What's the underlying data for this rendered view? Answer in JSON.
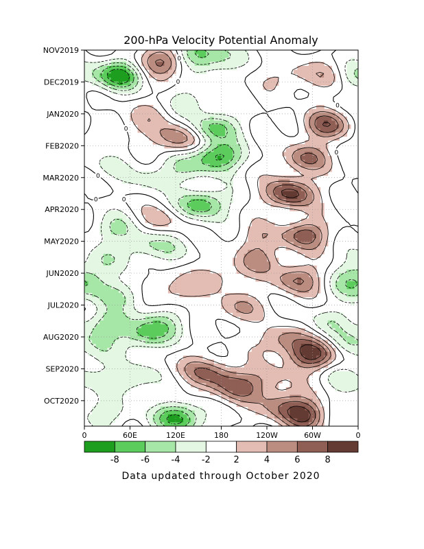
{
  "chart_data": {
    "type": "heatmap",
    "title": "200-hPa Velocity Potential Anomaly",
    "x_tick_labels": [
      "0",
      "60E",
      "120E",
      "180",
      "120W",
      "60W",
      "0"
    ],
    "x_ticks_deg": [
      0,
      60,
      120,
      180,
      240,
      300,
      360
    ],
    "xlim_deg": [
      0,
      360
    ],
    "y_tick_labels": [
      "NOV2019",
      "DEC2019",
      "JAN2020",
      "FEB2020",
      "MAR2020",
      "APR2020",
      "MAY2020",
      "JUN2020",
      "JUL2020",
      "AUG2020",
      "SEP2020",
      "OCT2020"
    ],
    "ylim_months": [
      0,
      11.8
    ],
    "grid": true,
    "colorbar": {
      "labels": [
        "-8",
        "-6",
        "-4",
        "-2",
        "2",
        "4",
        "6",
        "8"
      ],
      "colors": [
        "#1e9e1e",
        "#5ccc5c",
        "#a6e6a6",
        "#e3f7e3",
        "#ffffff",
        "#e3bcb3",
        "#bb8c80",
        "#8f5e54",
        "#633b33"
      ]
    },
    "contour_label": "0",
    "footer": "Data updated through October 2020",
    "anomaly_centers": [
      {
        "lon": 45,
        "t": 0.8,
        "value": -9
      },
      {
        "lon": 105,
        "t": 0.35,
        "value": 7
      },
      {
        "lon": 150,
        "t": 0.1,
        "value": -7
      },
      {
        "lon": 180,
        "t": 0.35,
        "value": -3
      },
      {
        "lon": 270,
        "t": 0.8,
        "value": 3
      },
      {
        "lon": 320,
        "t": 0.8,
        "value": 3
      },
      {
        "lon": 350,
        "t": 0.8,
        "value": -3
      },
      {
        "lon": 140,
        "t": 1.6,
        "value": -3
      },
      {
        "lon": 80,
        "t": 2.0,
        "value": 2
      },
      {
        "lon": 170,
        "t": 2.45,
        "value": -7
      },
      {
        "lon": 320,
        "t": 2.35,
        "value": 7
      },
      {
        "lon": 20,
        "t": 2.6,
        "value": -3
      },
      {
        "lon": 60,
        "t": 2.5,
        "value": 2
      },
      {
        "lon": 125,
        "t": 2.75,
        "value": 6
      },
      {
        "lon": 175,
        "t": 3.35,
        "value": -9
      },
      {
        "lon": 290,
        "t": 3.4,
        "value": 6
      },
      {
        "lon": 130,
        "t": 3.7,
        "value": -3
      },
      {
        "lon": 30,
        "t": 3.6,
        "value": -2
      },
      {
        "lon": 90,
        "t": 4.0,
        "value": -3
      },
      {
        "lon": 270,
        "t": 4.5,
        "value": 9
      },
      {
        "lon": 155,
        "t": 4.85,
        "value": -8
      },
      {
        "lon": 100,
        "t": 5.35,
        "value": 3
      },
      {
        "lon": 40,
        "t": 5.6,
        "value": -4
      },
      {
        "lon": 290,
        "t": 5.8,
        "value": 7
      },
      {
        "lon": 230,
        "t": 5.9,
        "value": 3
      },
      {
        "lon": 80,
        "t": 6.1,
        "value": -4
      },
      {
        "lon": 20,
        "t": 6.6,
        "value": -3
      },
      {
        "lon": 230,
        "t": 6.6,
        "value": 4
      },
      {
        "lon": 110,
        "t": 6.3,
        "value": -2
      },
      {
        "lon": 180,
        "t": 7.1,
        "value": 3
      },
      {
        "lon": 355,
        "t": 7.1,
        "value": -3
      },
      {
        "lon": 280,
        "t": 7.2,
        "value": 6
      },
      {
        "lon": 120,
        "t": 7.5,
        "value": 4
      },
      {
        "lon": 50,
        "t": 7.7,
        "value": -4
      },
      {
        "lon": 360,
        "t": 7.4,
        "value": -4
      },
      {
        "lon": 30,
        "t": 8.6,
        "value": -5
      },
      {
        "lon": 110,
        "t": 8.5,
        "value": -3
      },
      {
        "lon": 200,
        "t": 8.1,
        "value": 4
      },
      {
        "lon": 320,
        "t": 8.5,
        "value": -3
      },
      {
        "lon": 80,
        "t": 8.9,
        "value": -7
      },
      {
        "lon": 260,
        "t": 9.1,
        "value": 5
      },
      {
        "lon": 300,
        "t": 9.55,
        "value": 9
      },
      {
        "lon": 20,
        "t": 9.5,
        "value": -2
      },
      {
        "lon": 350,
        "t": 9.2,
        "value": -3
      },
      {
        "lon": 140,
        "t": 10.0,
        "value": 2
      },
      {
        "lon": 170,
        "t": 10.15,
        "value": 5
      },
      {
        "lon": 60,
        "t": 10.3,
        "value": -5
      },
      {
        "lon": 240,
        "t": 10.3,
        "value": 3
      },
      {
        "lon": 350,
        "t": 10.3,
        "value": -3
      },
      {
        "lon": 200,
        "t": 10.6,
        "value": 6
      },
      {
        "lon": 30,
        "t": 11.4,
        "value": -3
      },
      {
        "lon": 125,
        "t": 11.55,
        "value": -9
      },
      {
        "lon": 260,
        "t": 11.1,
        "value": 5
      },
      {
        "lon": 290,
        "t": 11.45,
        "value": 8
      },
      {
        "lon": 340,
        "t": 11.3,
        "value": -2
      }
    ]
  }
}
